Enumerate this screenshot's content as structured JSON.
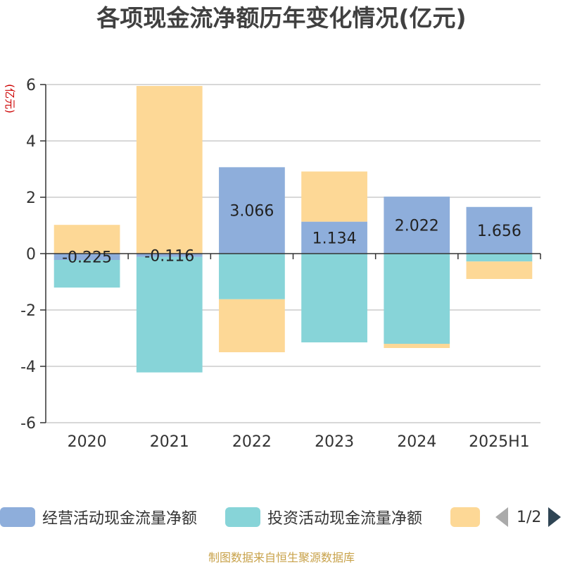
{
  "chart_data": {
    "type": "bar",
    "stacked": true,
    "title": "各项现金流净额历年变化情况(亿元)",
    "ylabel": "(亿元)",
    "ylim": [
      -6,
      6
    ],
    "yticks": [
      6,
      4,
      2,
      0,
      -2,
      -4,
      -6
    ],
    "grid": true,
    "legend_position": "bottom",
    "categories": [
      "2020",
      "2021",
      "2022",
      "2023",
      "2024",
      "2025H1"
    ],
    "series": [
      {
        "name": "经营活动现金流量净额",
        "color": "#8eaedb",
        "values": [
          -0.225,
          -0.116,
          3.066,
          1.134,
          2.022,
          1.656
        ],
        "labels": [
          "-0.225",
          "-0.116",
          "3.066",
          "1.134",
          "2.022",
          "1.656"
        ]
      },
      {
        "name": "投资活动现金流量净额",
        "color": "#87d4d8",
        "values": [
          -0.98,
          -4.1,
          -1.62,
          -3.15,
          -3.2,
          -0.28
        ]
      },
      {
        "name": "",
        "color": "#fdd896",
        "values": [
          1.02,
          5.95,
          -1.88,
          1.78,
          -0.15,
          -0.62
        ]
      }
    ]
  },
  "legend": {
    "pager": "1/2"
  },
  "footer": {
    "source": "制图数据来自恒生聚源数据库"
  }
}
